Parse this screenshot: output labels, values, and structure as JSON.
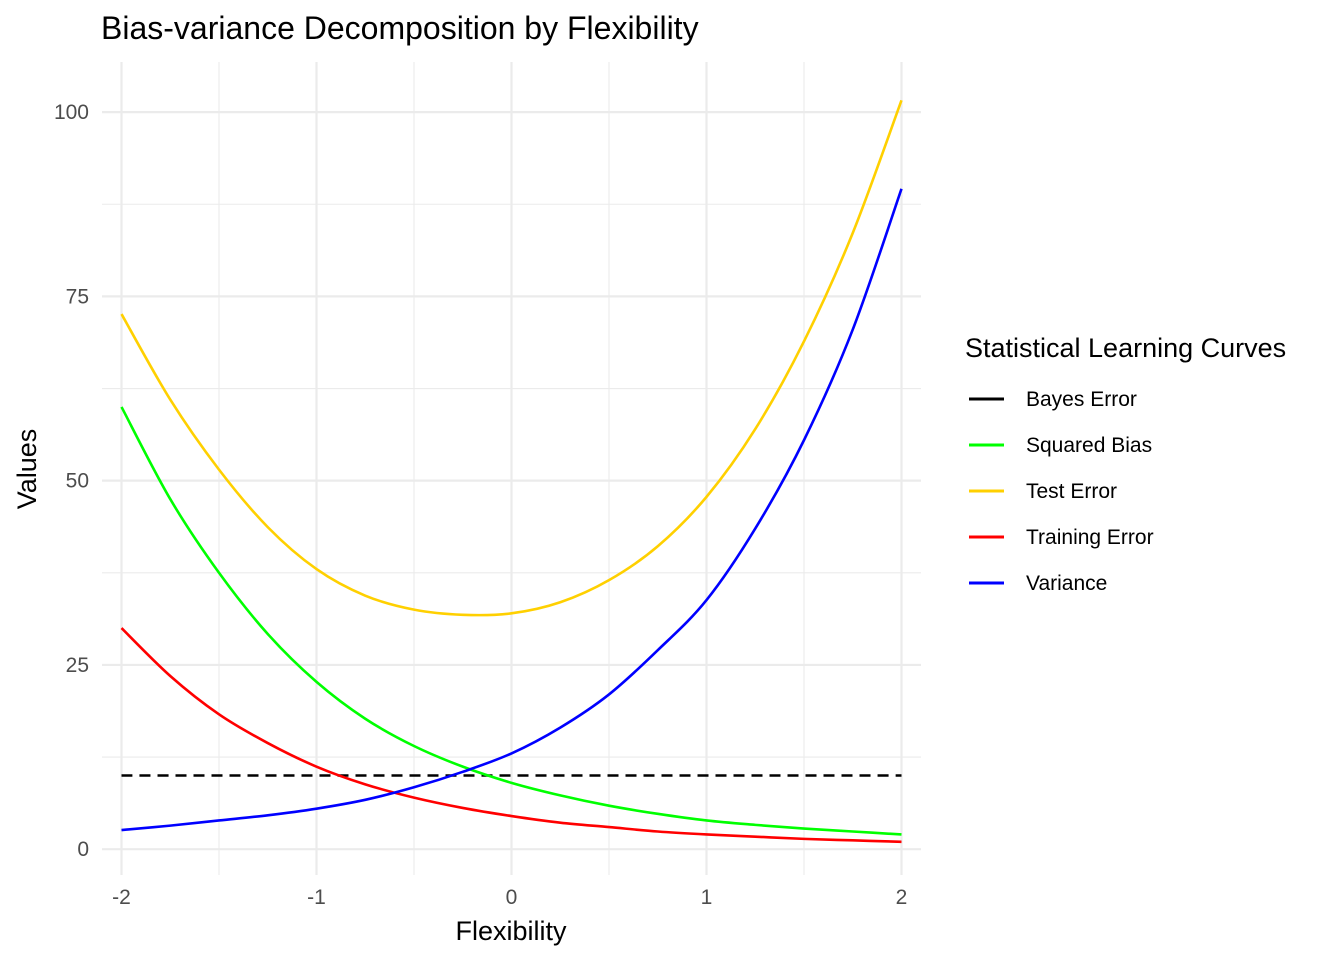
{
  "chart_data": {
    "type": "line",
    "title": "Bias-variance Decomposition by Flexibility",
    "xlabel": "Flexibility",
    "ylabel": "Values",
    "xlim": [
      -2.1,
      2.1
    ],
    "ylim": [
      -3.5,
      106.8
    ],
    "x_ticks": [
      -2,
      -1,
      0,
      1,
      2
    ],
    "x_tick_labels": [
      "-2",
      "-1",
      "0",
      "1",
      "2"
    ],
    "y_ticks": [
      0,
      25,
      50,
      75,
      100
    ],
    "y_tick_labels": [
      "0",
      "25",
      "50",
      "75",
      "100"
    ],
    "grid": true,
    "legend": {
      "title": "Statistical Learning Curves",
      "position": "right"
    },
    "x": [
      -2,
      -1.75,
      -1.5,
      -1.25,
      -1,
      -0.75,
      -0.5,
      -0.25,
      0,
      0.25,
      0.5,
      0.75,
      1,
      1.25,
      1.5,
      1.75,
      2
    ],
    "series": [
      {
        "name": "Bayes Error",
        "color": "#000000",
        "dash": true,
        "values": [
          10,
          10,
          10,
          10,
          10,
          10,
          10,
          10,
          10,
          10,
          10,
          10,
          10,
          10,
          10,
          10,
          10
        ]
      },
      {
        "name": "Squared Bias",
        "color": "#00ff00",
        "dash": false,
        "values": [
          60.0,
          47.5,
          37.5,
          29.2,
          22.7,
          17.7,
          14.0,
          11.2,
          9.0,
          7.3,
          5.9,
          4.8,
          3.9,
          3.3,
          2.8,
          2.4,
          2.0
        ]
      },
      {
        "name": "Test Error",
        "color": "#ffd000",
        "dash": false,
        "values": [
          72.6,
          61.0,
          51.5,
          43.7,
          38.0,
          34.4,
          32.5,
          31.8,
          32.0,
          33.5,
          36.5,
          41.1,
          47.8,
          57.0,
          68.9,
          83.6,
          101.6
        ]
      },
      {
        "name": "Training Error",
        "color": "#ff0000",
        "dash": false,
        "values": [
          30.0,
          23.5,
          18.3,
          14.4,
          11.2,
          8.8,
          7.0,
          5.6,
          4.5,
          3.6,
          3.0,
          2.4,
          2.0,
          1.7,
          1.4,
          1.2,
          1.0
        ]
      },
      {
        "name": "Variance",
        "color": "#0000ff",
        "dash": false,
        "values": [
          2.6,
          3.2,
          3.9,
          4.6,
          5.5,
          6.7,
          8.4,
          10.5,
          13.0,
          16.5,
          21.0,
          27.0,
          33.8,
          43.5,
          55.5,
          70.5,
          89.6
        ]
      }
    ]
  }
}
